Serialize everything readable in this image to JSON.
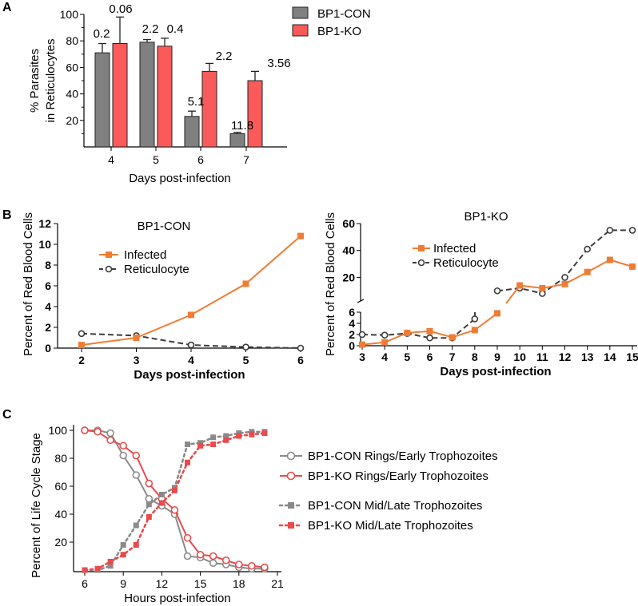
{
  "colors": {
    "con": "#808080",
    "ko": "#fa5a5a",
    "orange": "#f07c33",
    "dark": "#3c3c3c",
    "red": "#e84b4b",
    "grey": "#8a8a8a"
  },
  "panel_labels": [
    "A",
    "B",
    "C"
  ],
  "chart_data": [
    {
      "id": "A",
      "type": "bar",
      "ylabel": [
        "% Parasites",
        "in Reticulocytes"
      ],
      "xlabel": "Days post-infection",
      "ylim": [
        0,
        100
      ],
      "yticks": [
        20,
        40,
        60,
        80,
        100
      ],
      "categories": [
        "4",
        "5",
        "6",
        "7"
      ],
      "series": [
        {
          "name": "BP1-CON",
          "values": [
            71,
            79,
            23,
            10
          ],
          "errors": [
            7,
            2,
            4,
            1
          ],
          "labels": [
            "0.2",
            "2.2",
            "5.1",
            "11.8"
          ]
        },
        {
          "name": "BP1-KO",
          "values": [
            78,
            76,
            57,
            50
          ],
          "errors": [
            20,
            6,
            6,
            7
          ],
          "labels": [
            "0.06",
            "0.4",
            "2.2",
            "3.56"
          ]
        }
      ]
    },
    {
      "id": "B1",
      "type": "line",
      "title": "BP1-CON",
      "ylabel": "Percent of Red Blood Cells",
      "xlabel": "Days post-infection",
      "xlim": [
        2,
        6
      ],
      "ylim": [
        0,
        12
      ],
      "xticks": [
        2,
        3,
        4,
        5,
        6
      ],
      "yticks": [
        0,
        2,
        4,
        6,
        8,
        10,
        12
      ],
      "x": [
        2,
        3,
        4,
        5,
        6
      ],
      "series": [
        {
          "name": "Infected",
          "values": [
            0.3,
            1.0,
            3.2,
            6.2,
            10.8
          ]
        },
        {
          "name": "Reticulocyte",
          "values": [
            1.4,
            1.2,
            0.3,
            0.1,
            0.0
          ]
        }
      ]
    },
    {
      "id": "B2",
      "type": "line",
      "title": "BP1-KO",
      "ylabel": "Percent of Red Blood Cells",
      "xlabel": "Days post-infection",
      "xlim": [
        3,
        15
      ],
      "lower_ylim": [
        0,
        6
      ],
      "lower_yticks": [
        0,
        2,
        4,
        6
      ],
      "upper_ylim": [
        6,
        60
      ],
      "upper_yticks": [
        20,
        40,
        60
      ],
      "xticks": [
        3,
        4,
        5,
        6,
        7,
        8,
        9,
        10,
        11,
        12,
        13,
        14,
        15
      ],
      "x": [
        3,
        4,
        5,
        6,
        7,
        8,
        9,
        10,
        11,
        12,
        13,
        14,
        15
      ],
      "series": [
        {
          "name": "Infected",
          "values": [
            0.2,
            0.6,
            2.3,
            2.6,
            1.5,
            2.8,
            5.8,
            14,
            12,
            15,
            24,
            33,
            28
          ]
        },
        {
          "name": "Reticulocyte",
          "values": [
            2.0,
            1.9,
            2.2,
            1.4,
            1.4,
            4.8,
            10,
            12,
            8,
            20,
            41,
            55,
            55
          ]
        }
      ]
    },
    {
      "id": "C",
      "type": "line",
      "ylabel": "Percent of Life Cycle Stage",
      "xlabel": "Hours post-infection",
      "xlim": [
        6,
        21
      ],
      "ylim": [
        0,
        100
      ],
      "xticks": [
        6,
        9,
        12,
        15,
        18,
        21
      ],
      "yticks": [
        20,
        40,
        60,
        80,
        100
      ],
      "x": [
        6,
        7,
        8,
        9,
        10,
        11,
        12,
        13,
        14,
        15,
        16,
        17,
        18,
        19,
        20
      ],
      "series": [
        {
          "name": "BP1-CON Rings/Early Trophozoites",
          "values": [
            100,
            100,
            98,
            82,
            68,
            51,
            46,
            40,
            10,
            9,
            5,
            4,
            2,
            1,
            1
          ]
        },
        {
          "name": "BP1-KO Rings/Early Trophozoites",
          "values": [
            100,
            99,
            93,
            89,
            82,
            62,
            51,
            43,
            23,
            11,
            10,
            7,
            4,
            3,
            2
          ]
        },
        {
          "name": "BP1-CON Mid/Late Trophozoites",
          "values": [
            0,
            0,
            3,
            18,
            32,
            47,
            54,
            59,
            90,
            91,
            95,
            96,
            98,
            99,
            99
          ]
        },
        {
          "name": "BP1-KO Mid/Late Trophozoites",
          "values": [
            0,
            1,
            6,
            11,
            18,
            38,
            48,
            57,
            77,
            89,
            90,
            93,
            96,
            97,
            98
          ]
        }
      ]
    }
  ]
}
